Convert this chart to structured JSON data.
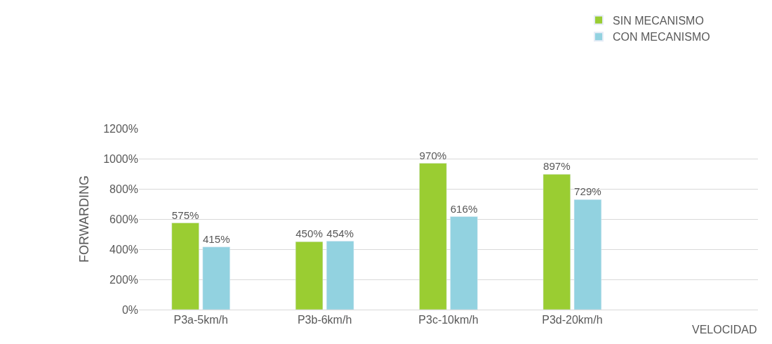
{
  "chart_data": {
    "type": "bar",
    "xlabel": "VELOCIDAD",
    "ylabel": "FORWARDING",
    "categories": [
      "P3a-5km/h",
      "P3b-6km/h",
      "P3c-10km/h",
      "P3d-20km/h",
      null
    ],
    "series": [
      {
        "name": "SIN MECANISMO",
        "color": "#9acd32",
        "values": [
          575,
          450,
          970,
          897,
          null
        ],
        "value_labels": [
          "575%",
          "450%",
          "970%",
          "897%",
          null
        ]
      },
      {
        "name": "CON MECANISMO",
        "color": "#92d2e0",
        "values": [
          415,
          454,
          616,
          729,
          null
        ],
        "value_labels": [
          "415%",
          "454%",
          "616%",
          "729%",
          null
        ]
      }
    ],
    "ylim": [
      0,
      1200
    ],
    "yticks": [
      {
        "value": 0,
        "label": "0%"
      },
      {
        "value": 200,
        "label": "200%"
      },
      {
        "value": 400,
        "label": "400%"
      },
      {
        "value": 600,
        "label": "600%"
      },
      {
        "value": 800,
        "label": "800%"
      },
      {
        "value": 1000,
        "label": "1000%"
      },
      {
        "value": 1200,
        "label": "1200%"
      }
    ],
    "grid": "y",
    "legend": "top right"
  }
}
